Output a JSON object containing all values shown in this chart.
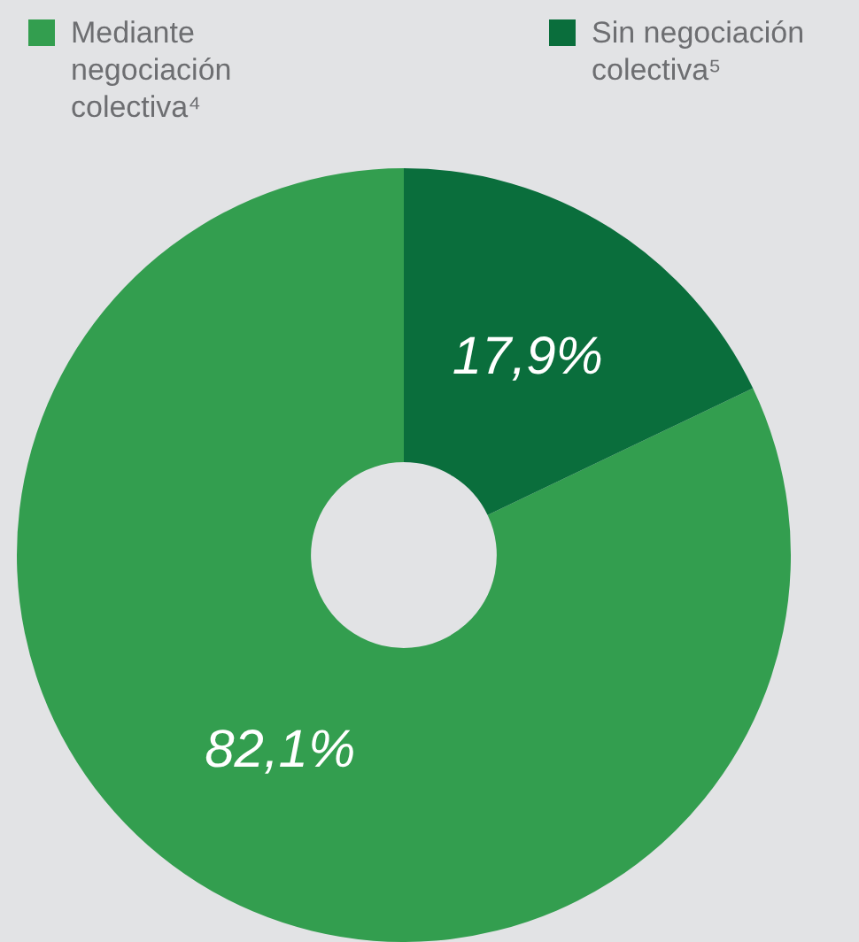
{
  "chart_data": {
    "type": "donut",
    "categories": [
      "Mediante negociación colectiva⁴",
      "Sin negociación colectiva⁵"
    ],
    "values": [
      82.1,
      17.9
    ],
    "colors": [
      "#339e4f",
      "#0a6e3c"
    ],
    "value_labels": [
      "82,1%",
      "17,9%"
    ],
    "legend": "top"
  }
}
